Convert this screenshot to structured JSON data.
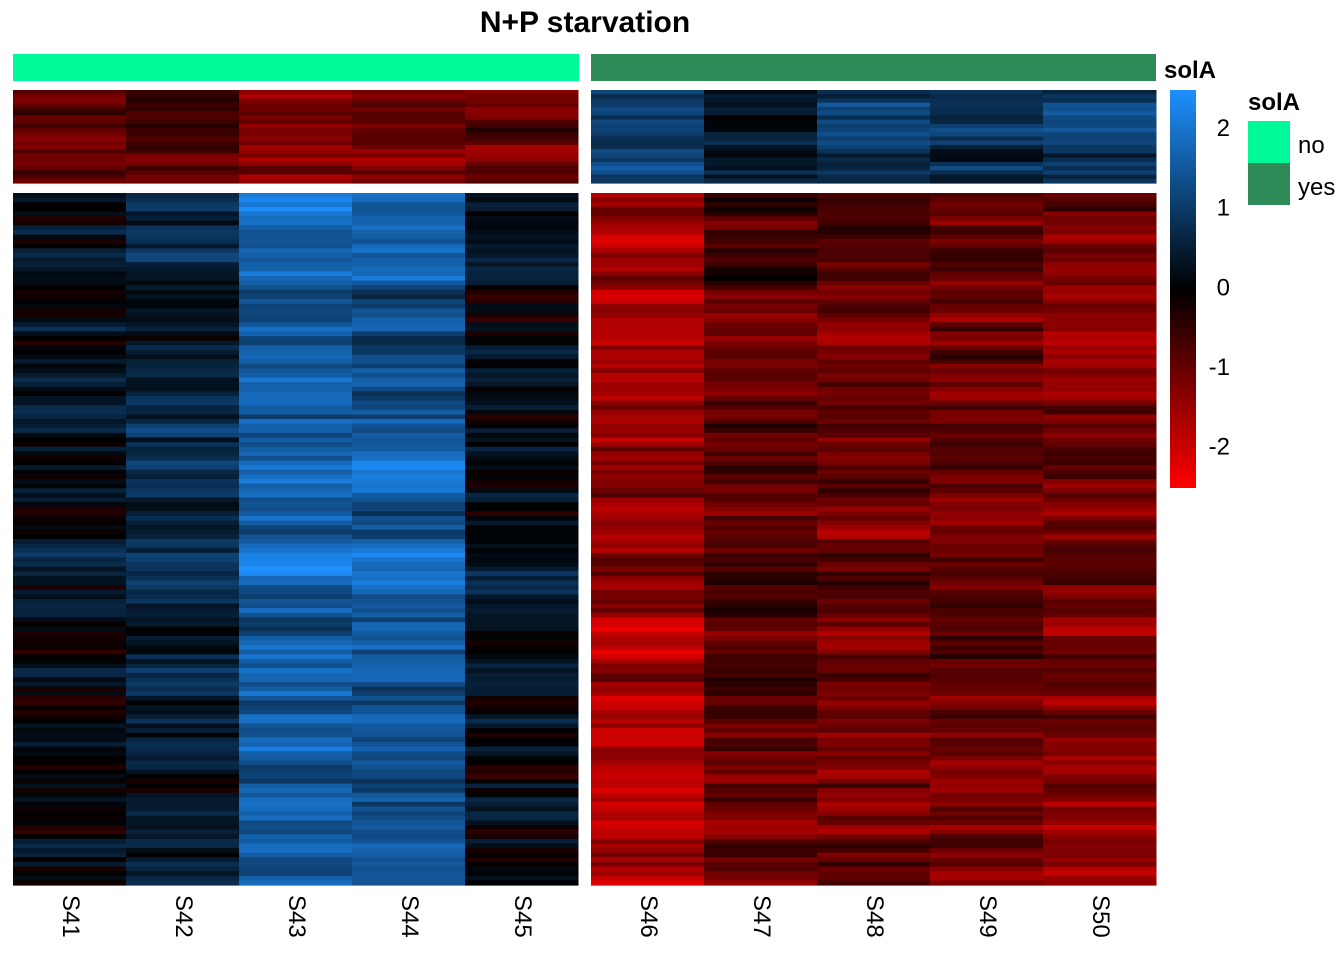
{
  "chart_data": {
    "type": "heatmap",
    "title": "N+P starvation",
    "columns": [
      "S41",
      "S42",
      "S43",
      "S44",
      "S45",
      "S46",
      "S47",
      "S48",
      "S49",
      "S50"
    ],
    "column_groups": [
      {
        "solA": "no",
        "columns": [
          "S41",
          "S42",
          "S43",
          "S44",
          "S45"
        ]
      },
      {
        "solA": "yes",
        "columns": [
          "S46",
          "S47",
          "S48",
          "S49",
          "S50"
        ]
      }
    ],
    "row_clusters": 2,
    "column_annotation": {
      "name": "solA",
      "levels": [
        {
          "label": "no",
          "color": "#00FA9A"
        },
        {
          "label": "yes",
          "color": "#2E8B57"
        }
      ]
    },
    "color_scale": {
      "min": -2.5,
      "max": 2.5,
      "ticks": [
        2,
        1,
        0,
        -1,
        -2
      ],
      "low_color": "#FF0000",
      "mid_color": "#000000",
      "high_color": "#1E90FF"
    },
    "column_mean_values": {
      "cluster_top": [
        -1.1,
        -0.7,
        -1.4,
        -1.3,
        -1.2,
        1.0,
        0.4,
        0.9,
        0.6,
        0.8
      ],
      "cluster_bottom": [
        0.2,
        0.5,
        1.7,
        1.5,
        0.2,
        -1.5,
        -0.9,
        -1.0,
        -1.0,
        -1.2
      ]
    }
  },
  "legends": {
    "heatmap_title": "solA",
    "annotation_title": "solA"
  }
}
